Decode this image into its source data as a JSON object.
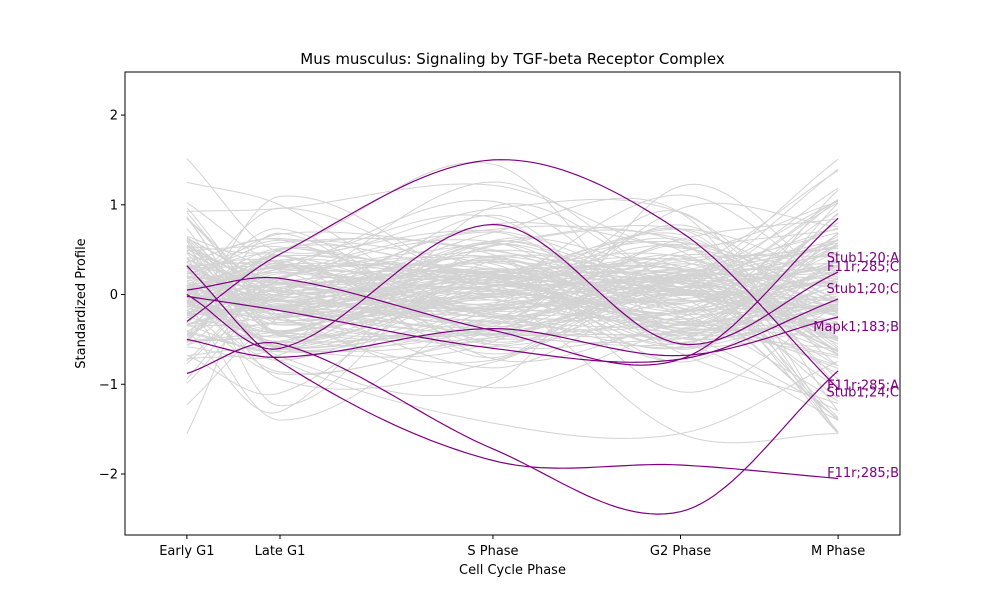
{
  "chart_data": {
    "type": "line",
    "title": "Mus musculus: Signaling by TGF-beta Receptor Complex",
    "xlabel": "Cell Cycle Phase",
    "ylabel": "Standardized Profile",
    "categories": [
      "Early G1",
      "Late G1",
      "S Phase",
      "G2 Phase",
      "M Phase"
    ],
    "x": [
      0.0,
      0.143,
      0.47,
      0.758,
      1.0
    ],
    "xlim": [
      -0.095,
      1.095
    ],
    "ylim": [
      -2.68,
      2.48
    ],
    "yticks": [
      -2,
      -1,
      0,
      1,
      2
    ],
    "ytick_labels": [
      "−2",
      "−1",
      "0",
      "1",
      "2"
    ],
    "grid": false,
    "background_color": "#d3d3d3",
    "highlight_color": "#800080",
    "background_count": 160,
    "highlighted_series": [
      {
        "name": "Mapk1;183;B",
        "values": [
          -0.3,
          0.45,
          1.5,
          0.7,
          -1.05
        ]
      },
      {
        "name": "Stub1;20;A",
        "values": [
          0.0,
          -0.6,
          0.78,
          -0.55,
          0.25
        ]
      },
      {
        "name": "F11r;285;C",
        "values": [
          0.32,
          -0.75,
          -1.85,
          -1.9,
          -2.05
        ]
      },
      {
        "name": "Stub1;20;C",
        "values": [
          -0.5,
          -0.7,
          -0.38,
          -0.68,
          -0.25
        ]
      },
      {
        "name": "F11r;285;A",
        "values": [
          -0.02,
          -0.18,
          -0.6,
          -0.72,
          -0.05
        ]
      },
      {
        "name": "Stub1;24;C",
        "values": [
          0.05,
          0.18,
          -0.4,
          -0.72,
          0.85
        ]
      },
      {
        "name": "F11r;285;B",
        "values": [
          -0.88,
          -0.55,
          -1.72,
          -2.42,
          -0.85
        ]
      }
    ],
    "label_values": [
      -0.35,
      0.42,
      0.32,
      0.07,
      -1.0,
      -1.08,
      -1.98
    ]
  }
}
